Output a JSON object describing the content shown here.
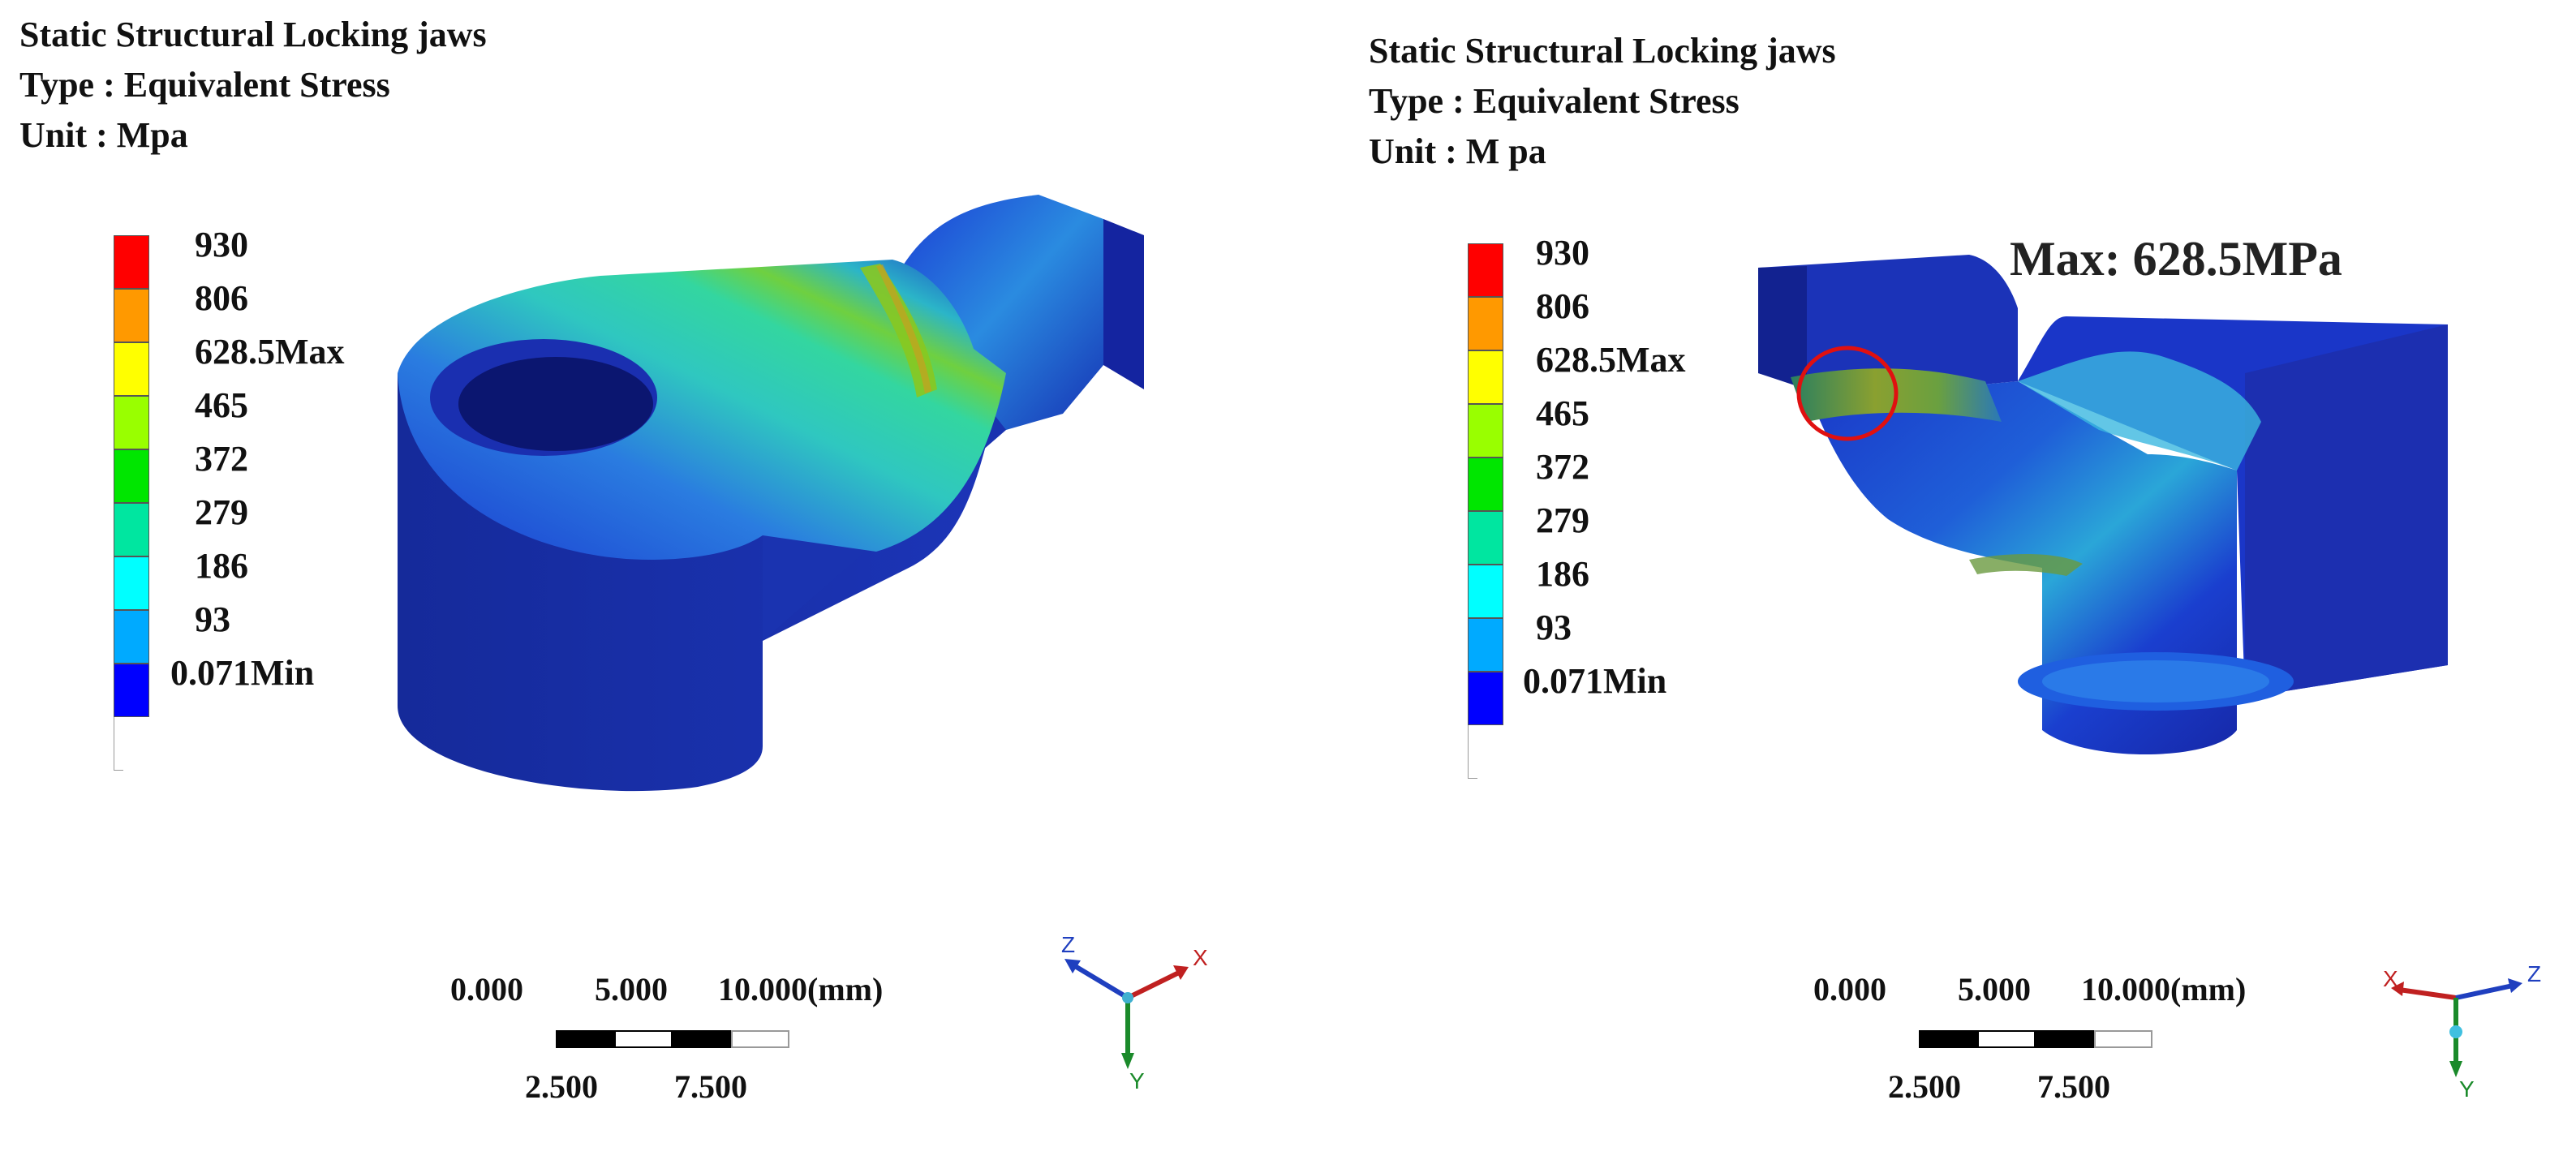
{
  "panels": [
    {
      "title": "Static Structural Locking jaws",
      "type_line": "Type : Equivalent Stress",
      "unit_line": "Unit : Mpa",
      "legend_labels": [
        "930",
        "806",
        "628.5Max",
        "465",
        "372",
        "279",
        "186",
        "93",
        "0.071Min"
      ],
      "scale_top": [
        "0.000",
        "5.000",
        "10.000(mm)"
      ],
      "scale_bottom": [
        "2.500",
        "7.500"
      ],
      "triad": {
        "z": "Z",
        "x": "X",
        "y": "Y"
      }
    },
    {
      "title": "Static Structural Locking jaws",
      "type_line": "Type : Equivalent Stress",
      "unit_line": "Unit : M pa",
      "legend_labels": [
        "930",
        "806",
        "628.5Max",
        "465",
        "372",
        "279",
        "186",
        "93",
        "0.071Min"
      ],
      "scale_top": [
        "0.000",
        "5.000",
        "10.000(mm)"
      ],
      "scale_bottom": [
        "2.500",
        "7.500"
      ],
      "triad": {
        "x": "X",
        "z": "Z",
        "y": "Y"
      },
      "max_callout": "Max: 628.5MPa"
    }
  ],
  "legend_colors": [
    "#ff0000",
    "#ff9900",
    "#ffff00",
    "#99ff00",
    "#00e600",
    "#00e6a0",
    "#00ffff",
    "#00aaff",
    "#0000ff"
  ],
  "colors": {
    "model_blue": "#1a2fb0",
    "highlight_circle": "#e01010"
  }
}
